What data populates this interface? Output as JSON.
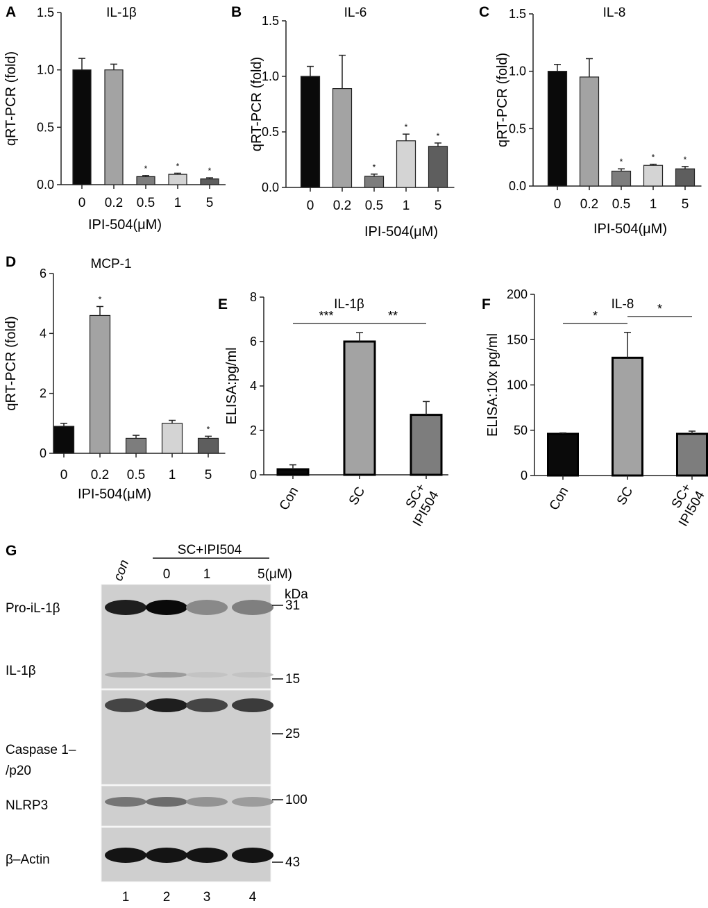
{
  "colors": {
    "black": "#0a0a0a",
    "gray": "#a3a3a3",
    "mid": "#7d7d7d",
    "light": "#d4d4d4",
    "dark": "#5e5e5e"
  },
  "chart_data": [
    {
      "panel": "A",
      "type": "bar",
      "title": "IL-1β",
      "ylabel": "qRT-PCR (fold)",
      "xlabel": "IPI-504(μM)",
      "ylim": [
        0,
        1.5
      ],
      "yticks": [
        "0.0",
        "0.5",
        "1.0",
        "1.5"
      ],
      "categories": [
        "0",
        "0.2",
        "0.5",
        "1",
        "5"
      ],
      "values": [
        1.0,
        1.0,
        0.07,
        0.09,
        0.05
      ],
      "errors": [
        0.1,
        0.05,
        0.01,
        0.01,
        0.01
      ],
      "fills": [
        "black",
        "gray",
        "mid",
        "light",
        "dark"
      ],
      "annotations": [
        "",
        "",
        "*",
        "*",
        "*"
      ]
    },
    {
      "panel": "B",
      "type": "bar",
      "title": "IL-6",
      "ylabel": "qRT-PCR (fold)",
      "xlabel": "IPI-504(μM)",
      "ylim": [
        0,
        1.5
      ],
      "yticks": [
        "0.0",
        "0.5",
        "1.0",
        "1.5"
      ],
      "categories": [
        "0",
        "0.2",
        "0.5",
        "1",
        "5"
      ],
      "values": [
        1.0,
        0.89,
        0.1,
        0.42,
        0.37
      ],
      "errors": [
        0.09,
        0.3,
        0.02,
        0.06,
        0.03
      ],
      "fills": [
        "black",
        "gray",
        "mid",
        "light",
        "dark"
      ],
      "annotations": [
        "",
        "",
        "*",
        "*",
        "*"
      ]
    },
    {
      "panel": "C",
      "type": "bar",
      "title": "IL-8",
      "ylabel": "qRT-PCR (fold)",
      "xlabel": "IPI-504(μM)",
      "ylim": [
        0,
        1.5
      ],
      "yticks": [
        "0.0",
        "0.5",
        "1.0",
        "1.5"
      ],
      "categories": [
        "0",
        "0.2",
        "0.5",
        "1",
        "5"
      ],
      "values": [
        1.0,
        0.95,
        0.13,
        0.18,
        0.15
      ],
      "errors": [
        0.06,
        0.16,
        0.02,
        0.01,
        0.02
      ],
      "fills": [
        "black",
        "gray",
        "mid",
        "light",
        "dark"
      ],
      "annotations": [
        "",
        "",
        "*",
        "*",
        "*"
      ]
    },
    {
      "panel": "D",
      "type": "bar",
      "title": "MCP-1",
      "ylabel": "qRT-PCR (fold)",
      "xlabel": "IPI-504(μM)",
      "ylim": [
        0,
        6
      ],
      "yticks": [
        "0",
        "2",
        "4",
        "6"
      ],
      "categories": [
        "0",
        "0.2",
        "0.5",
        "1",
        "5"
      ],
      "values": [
        0.9,
        4.6,
        0.5,
        1.0,
        0.5
      ],
      "errors": [
        0.1,
        0.3,
        0.1,
        0.1,
        0.07
      ],
      "fills": [
        "black",
        "gray",
        "mid",
        "light",
        "dark"
      ],
      "annotations": [
        "",
        "*",
        "",
        "",
        "*"
      ]
    },
    {
      "panel": "E",
      "type": "bar",
      "title": "IL-1β",
      "ylabel": "ELISA:pg/ml",
      "xlabel": "",
      "ylim": [
        0,
        8
      ],
      "yticks": [
        "0",
        "2",
        "4",
        "6",
        "8"
      ],
      "categories": [
        "Con",
        "SC",
        "SC+ IPI504"
      ],
      "values": [
        0.25,
        6.0,
        2.7
      ],
      "errors": [
        0.2,
        0.4,
        0.6
      ],
      "fills": [
        "black",
        "gray",
        "mid"
      ],
      "significance": [
        {
          "from": 0,
          "to": 1,
          "label": "***"
        },
        {
          "from": 1,
          "to": 2,
          "label": "**"
        }
      ]
    },
    {
      "panel": "F",
      "type": "bar",
      "title": "IL-8",
      "ylabel": "ELISA:10x pg/ml",
      "xlabel": "",
      "ylim": [
        0,
        200
      ],
      "yticks": [
        "0",
        "50",
        "100",
        "150",
        "200"
      ],
      "categories": [
        "Con",
        "SC",
        "SC+ IPI504"
      ],
      "values": [
        46,
        130,
        46
      ],
      "errors": [
        1,
        28,
        3
      ],
      "fills": [
        "black",
        "gray",
        "mid"
      ],
      "significance": [
        {
          "from": 0,
          "to": 1,
          "label": "*"
        },
        {
          "from": 1,
          "to": 2,
          "label": "*"
        }
      ]
    }
  ],
  "blot": {
    "panel": "G",
    "treatment_label": "SC+IPI504",
    "lane_headers": [
      "con",
      "0",
      "1",
      "5(μM)"
    ],
    "lane_numbers": [
      "1",
      "2",
      "3",
      "4"
    ],
    "kda_label": "kDa",
    "markers": [
      "31",
      "15",
      "25",
      "100",
      "43"
    ],
    "rows": [
      {
        "label": "Pro-iL-1β",
        "intensity": [
          0.9,
          1.0,
          0.35,
          0.4
        ]
      },
      {
        "label": "IL-1β",
        "intensity": [
          0.2,
          0.25,
          0.05,
          0.05
        ]
      },
      {
        "label": "Caspase 1–/p20",
        "label_lines": [
          "Caspase 1–",
          "/p20"
        ],
        "intensity": [
          0.7,
          0.9,
          0.7,
          0.75
        ]
      },
      {
        "label": "NLRP3",
        "intensity": [
          0.45,
          0.5,
          0.3,
          0.25
        ]
      },
      {
        "label": "β–Actin",
        "intensity": [
          0.95,
          0.95,
          0.95,
          0.95
        ]
      }
    ]
  }
}
